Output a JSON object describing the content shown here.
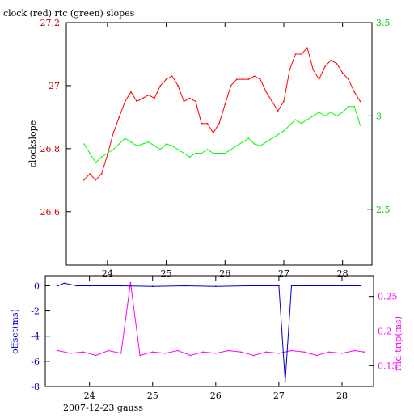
{
  "chart_data": [
    {
      "type": "line",
      "title": "clock (red) rtc (green) slopes",
      "ylabel": "clockslope",
      "xlim": [
        23.3,
        28.5
      ],
      "ylim_left": [
        26.43,
        27.2
      ],
      "ylim_right": [
        2.2,
        3.5
      ],
      "x_ticks": [
        24,
        25,
        26,
        27,
        28
      ],
      "y_ticks_left": [
        26.6,
        26.8,
        27,
        27.2
      ],
      "y_ticks_right": [
        2.5,
        3,
        3.5
      ],
      "grid": false,
      "series": [
        {
          "name": "clock",
          "axis": "left",
          "color": "#ff0000",
          "x": [
            23.6,
            23.7,
            23.8,
            23.9,
            24.0,
            24.1,
            24.2,
            24.3,
            24.4,
            24.5,
            24.6,
            24.7,
            24.8,
            24.9,
            25.0,
            25.1,
            25.2,
            25.3,
            25.4,
            25.5,
            25.6,
            25.7,
            25.8,
            25.9,
            26.0,
            26.1,
            26.2,
            26.3,
            26.4,
            26.5,
            26.6,
            26.7,
            26.8,
            26.9,
            27.0,
            27.1,
            27.2,
            27.3,
            27.4,
            27.5,
            27.6,
            27.7,
            27.8,
            27.9,
            28.0,
            28.1,
            28.2,
            28.3
          ],
          "values": [
            26.7,
            26.72,
            26.7,
            26.72,
            26.78,
            26.85,
            26.9,
            26.95,
            26.98,
            26.95,
            26.96,
            26.97,
            26.96,
            27.0,
            27.02,
            27.03,
            27.0,
            26.95,
            26.96,
            26.95,
            26.88,
            26.88,
            26.85,
            26.88,
            26.94,
            27.0,
            27.02,
            27.02,
            27.02,
            27.03,
            27.02,
            26.98,
            26.95,
            26.92,
            26.95,
            27.05,
            27.1,
            27.1,
            27.12,
            27.05,
            27.02,
            27.06,
            27.08,
            27.07,
            27.04,
            27.02,
            26.98,
            26.95
          ]
        },
        {
          "name": "rtc",
          "axis": "right",
          "color": "#00ff00",
          "x": [
            23.6,
            23.7,
            23.8,
            23.9,
            24.0,
            24.1,
            24.2,
            24.3,
            24.4,
            24.5,
            24.6,
            24.7,
            24.8,
            24.9,
            25.0,
            25.1,
            25.2,
            25.3,
            25.4,
            25.5,
            25.6,
            25.7,
            25.8,
            25.9,
            26.0,
            26.1,
            26.2,
            26.3,
            26.4,
            26.5,
            26.6,
            26.7,
            26.8,
            26.9,
            27.0,
            27.1,
            27.2,
            27.3,
            27.4,
            27.5,
            27.6,
            27.7,
            27.8,
            27.9,
            28.0,
            28.1,
            28.2,
            28.3
          ],
          "values": [
            2.85,
            2.8,
            2.75,
            2.78,
            2.8,
            2.82,
            2.85,
            2.88,
            2.86,
            2.84,
            2.85,
            2.86,
            2.84,
            2.82,
            2.85,
            2.84,
            2.82,
            2.8,
            2.78,
            2.8,
            2.8,
            2.82,
            2.8,
            2.8,
            2.8,
            2.82,
            2.84,
            2.86,
            2.88,
            2.85,
            2.84,
            2.86,
            2.88,
            2.9,
            2.92,
            2.95,
            2.98,
            2.96,
            2.98,
            3.0,
            3.02,
            3.0,
            3.02,
            3.0,
            3.02,
            3.05,
            3.05,
            2.95
          ]
        }
      ]
    },
    {
      "type": "line",
      "xlabel": "2007-12-23 gauss",
      "ylabel_left": "offset(ms)",
      "ylabel_right": "rnd-trip(ms)",
      "xlim": [
        23.3,
        28.5
      ],
      "ylim_left": [
        -8,
        0.8
      ],
      "ylim_right": [
        0.12,
        0.28
      ],
      "x_ticks": [
        24,
        25,
        26,
        27,
        28
      ],
      "y_ticks_left": [
        0,
        -2,
        -4,
        -6,
        -8
      ],
      "y_ticks_right": [
        0.25,
        0.2,
        0.15
      ],
      "grid": false,
      "series": [
        {
          "name": "offset",
          "axis": "left",
          "color": "#0000cc",
          "x": [
            23.5,
            23.6,
            23.8,
            24.0,
            24.5,
            25.0,
            25.5,
            26.0,
            26.5,
            27.0,
            27.1,
            27.2,
            27.5,
            28.0,
            28.3
          ],
          "values": [
            0,
            0.2,
            0,
            0,
            0,
            -0.05,
            0,
            -0.05,
            0,
            0,
            -7.6,
            0,
            0,
            0,
            0
          ]
        },
        {
          "name": "rnd-trip",
          "axis": "right",
          "color": "#ff00ff",
          "x": [
            23.5,
            23.7,
            23.9,
            24.1,
            24.3,
            24.5,
            24.65,
            24.8,
            25.0,
            25.2,
            25.4,
            25.6,
            25.8,
            26.0,
            26.2,
            26.4,
            26.6,
            26.8,
            27.0,
            27.2,
            27.4,
            27.6,
            27.8,
            28.0,
            28.2,
            28.35
          ],
          "values": [
            0.172,
            0.168,
            0.17,
            0.165,
            0.172,
            0.168,
            0.27,
            0.165,
            0.17,
            0.168,
            0.172,
            0.165,
            0.17,
            0.168,
            0.172,
            0.17,
            0.165,
            0.17,
            0.168,
            0.172,
            0.17,
            0.165,
            0.17,
            0.168,
            0.172,
            0.17
          ]
        }
      ]
    }
  ]
}
